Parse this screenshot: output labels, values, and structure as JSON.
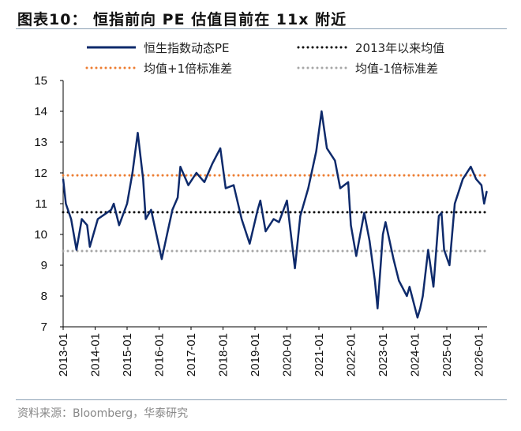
{
  "title": "图表10：  恒指前向 PE 估值目前在 11x 附近",
  "source": "资料来源：Bloomberg，华泰研究",
  "chart_data": {
    "type": "line",
    "title": "图表10：  恒指前向 PE 估值目前在 11x 附近",
    "xlabel": "",
    "ylabel": "",
    "ylim": [
      7,
      15
    ],
    "yticks": [
      "7",
      "8",
      "9",
      "10",
      "11",
      "12",
      "13",
      "14",
      "15"
    ],
    "xticks": [
      "2013-01",
      "2014-01",
      "2015-01",
      "2016-01",
      "2017-01",
      "2018-01",
      "2019-01",
      "2020-01",
      "2021-01",
      "2022-01",
      "2023-01",
      "2024-01",
      "2025-01",
      "2026-01"
    ],
    "grid": false,
    "legend_position": "top",
    "series": [
      {
        "name": "恒生指数动态PE",
        "color": "#0e2a6b",
        "style": "solid",
        "x": [
          "2013-01",
          "2013-02",
          "2013-04",
          "2013-06",
          "2013-08",
          "2013-10",
          "2013-11",
          "2014-02",
          "2014-07",
          "2014-08",
          "2014-10",
          "2015-01",
          "2015-03",
          "2015-05",
          "2015-07",
          "2015-08",
          "2015-10",
          "2016-02",
          "2016-04",
          "2016-06",
          "2016-08",
          "2016-09",
          "2016-12",
          "2017-03",
          "2017-06",
          "2017-09",
          "2017-12",
          "2018-02",
          "2018-05",
          "2018-08",
          "2018-11",
          "2019-02",
          "2019-03",
          "2019-05",
          "2019-08",
          "2019-10",
          "2020-01",
          "2020-04",
          "2020-06",
          "2020-09",
          "2020-12",
          "2021-02",
          "2021-04",
          "2021-07",
          "2021-09",
          "2021-12",
          "2022-01",
          "2022-03",
          "2022-06",
          "2022-08",
          "2022-10",
          "2022-11",
          "2023-01",
          "2023-02",
          "2023-05",
          "2023-07",
          "2023-10",
          "2023-11",
          "2024-02",
          "2024-03",
          "2024-04",
          "2024-06",
          "2024-08",
          "2024-10",
          "2024-11",
          "2024-12",
          "2025-02",
          "2025-04",
          "2025-07",
          "2025-10",
          "2025-12",
          "2026-02",
          "2026-03",
          "2026-04"
        ],
        "values": [
          11.8,
          11.0,
          10.5,
          9.5,
          10.5,
          10.3,
          9.6,
          10.5,
          10.8,
          11.0,
          10.3,
          11.0,
          12.0,
          13.3,
          11.8,
          10.5,
          10.8,
          9.2,
          10.0,
          10.8,
          11.2,
          12.2,
          11.6,
          12.0,
          11.7,
          12.3,
          12.8,
          11.5,
          11.6,
          10.5,
          9.7,
          10.8,
          11.1,
          10.1,
          10.5,
          10.4,
          11.1,
          8.9,
          10.6,
          11.5,
          12.7,
          14.0,
          12.8,
          12.4,
          11.5,
          11.7,
          10.3,
          9.3,
          10.7,
          9.8,
          8.5,
          7.6,
          10.0,
          10.4,
          9.2,
          8.5,
          8.0,
          8.3,
          7.3,
          7.6,
          8.0,
          9.5,
          8.3,
          10.6,
          10.7,
          9.5,
          9.0,
          11.0,
          11.8,
          12.2,
          11.8,
          11.6,
          11.0,
          11.4
        ]
      },
      {
        "name": "2013年以来均值",
        "color": "#000000",
        "style": "dotted",
        "value": 10.72
      },
      {
        "name": "均值+1倍标准差",
        "color": "#ed7d31",
        "style": "dotted",
        "value": 11.92
      },
      {
        "name": "均值-1倍标准差",
        "color": "#a6a6a6",
        "style": "dotted",
        "value": 9.46
      }
    ]
  }
}
